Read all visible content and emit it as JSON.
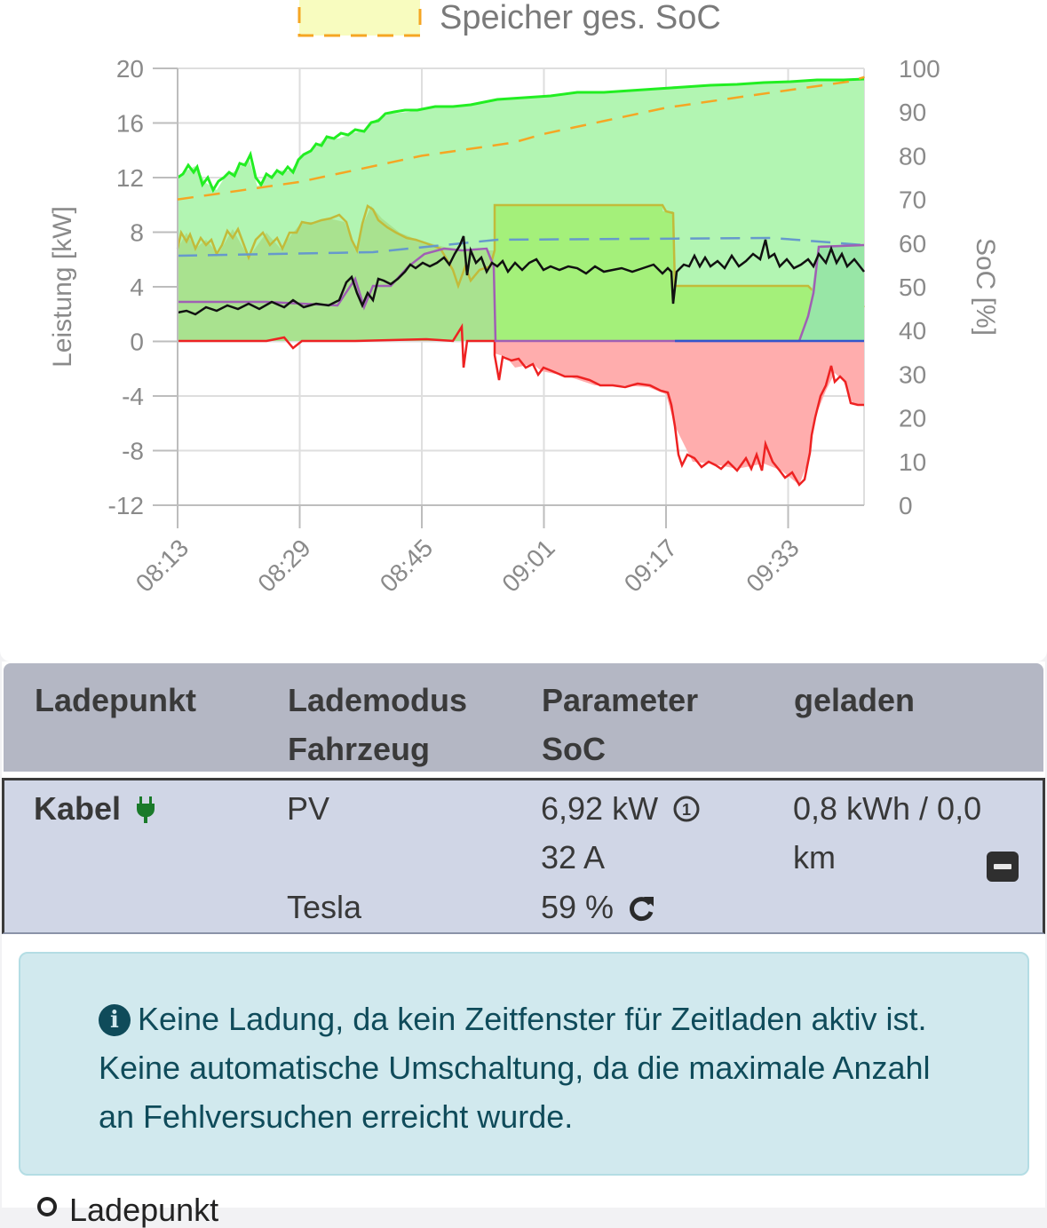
{
  "legend": {
    "label": "Speicher ges. SoC",
    "color": "#f5a623"
  },
  "chart_data": {
    "type": "area",
    "xlabel": "",
    "ylabel_left": "Leistung [kW]",
    "ylabel_right": "SoC [%]",
    "ylim_left": [
      -12,
      20
    ],
    "ylim_right": [
      0,
      100
    ],
    "left_ticks": [
      "20",
      "16",
      "12",
      "8",
      "4",
      "0",
      "-4",
      "-8",
      "-12"
    ],
    "right_ticks": [
      "100",
      "90",
      "80",
      "70",
      "60",
      "50",
      "40",
      "30",
      "20",
      "10",
      "0"
    ],
    "x_ticks": [
      "08:13",
      "08:29",
      "08:45",
      "09:01",
      "09:17",
      "09:33"
    ],
    "grid": true,
    "series": [
      {
        "name": "Speicher ges. SoC",
        "axis": "right",
        "style": "dashed",
        "color": "#f5a623",
        "x": [
          "08:13",
          "08:17",
          "08:21",
          "08:25",
          "08:29",
          "08:33",
          "08:37",
          "08:41",
          "08:45",
          "08:49",
          "08:53",
          "08:57",
          "09:01",
          "09:05",
          "09:09",
          "09:13",
          "09:17",
          "09:21",
          "09:25",
          "09:29",
          "09:33",
          "09:37",
          "09:41",
          "09:43"
        ],
        "y": [
          70,
          71,
          72,
          73,
          74,
          75.5,
          77,
          78.5,
          80,
          81,
          82,
          83,
          85,
          86.5,
          88,
          89.5,
          91,
          92,
          93,
          94,
          95,
          96,
          97,
          98
        ]
      }
    ],
    "colors": {
      "pv": "#33dd33",
      "grid_export": "#ff6666",
      "grid_line": "#ee2222",
      "house": "#111111",
      "charge": "#a3ee55",
      "battery_soc_area": "#7fe87f"
    }
  },
  "table": {
    "headers": [
      "Ladepunkt",
      "Lademodus\nFahrzeug",
      "Parameter\nSoC",
      "geladen"
    ],
    "row": {
      "name": "Kabel",
      "mode": "PV",
      "vehicle": "Tesla",
      "power": "6,92 kW",
      "current": "32 A",
      "soc": "59 %",
      "charged_line1": "0,8 kWh / 0,0",
      "charged_line2": "km"
    }
  },
  "alert": {
    "text": "Keine Ladung, da kein Zeitfenster für Zeitladen aktiv ist. Keine automatische Umschaltung, da die maximale Anzahl an Fehlversuchen erreicht wurde."
  },
  "next_section": {
    "label": "Ladepunkt"
  }
}
